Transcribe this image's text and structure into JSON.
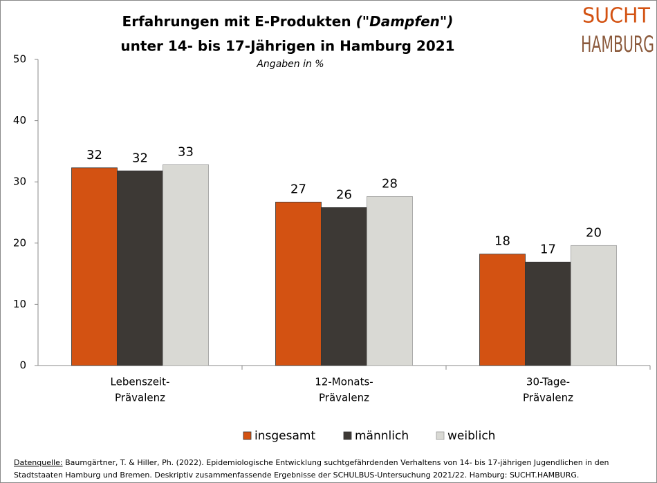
{
  "logo": {
    "line1": "SUCHT",
    "line2": "HAMBURG"
  },
  "chart_data": {
    "type": "bar",
    "title": "Erfahrungen mit E-Produkten",
    "title_emphasis": "(\"Dampfen\")",
    "title_line2": "unter 14- bis 17-Jährigen in Hamburg 2021",
    "subtitle": "Angaben in %",
    "categories": [
      [
        "Lebenszeit-",
        "Prävalenz"
      ],
      [
        "12-Monats-",
        "Prävalenz"
      ],
      [
        "30-Tage-",
        "Prävalenz"
      ]
    ],
    "series": [
      {
        "name": "insgesamt",
        "color": "#d35212",
        "values": [
          32.3,
          26.7,
          18.2
        ],
        "value_labels": [
          "32",
          "27",
          "18"
        ]
      },
      {
        "name": "männlich",
        "color": "#3d3935",
        "values": [
          31.8,
          25.8,
          16.9
        ],
        "value_labels": [
          "32",
          "26",
          "17"
        ]
      },
      {
        "name": "weiblich",
        "color": "#d9d9d4",
        "values": [
          32.8,
          27.6,
          19.6
        ],
        "value_labels": [
          "33",
          "28",
          "20"
        ]
      }
    ],
    "ylim": [
      0,
      50
    ],
    "yticks": [
      0,
      10,
      20,
      30,
      40,
      50
    ],
    "legend": "bottom"
  },
  "source": {
    "label": "Datenquelle:",
    "lines": [
      "Baumgärtner, T. & Hiller, Ph. (2022). Epidemiologische Entwicklung suchtgefährdenden Verhaltens von 14- bis 17-jährigen Jugendlichen in den",
      "Stadtstaaten Hamburg und Bremen. Deskriptiv zusammenfassende Ergebnisse der SCHULBUS-Untersuchung 2021/22. Hamburg: SUCHT.HAMBURG."
    ]
  }
}
